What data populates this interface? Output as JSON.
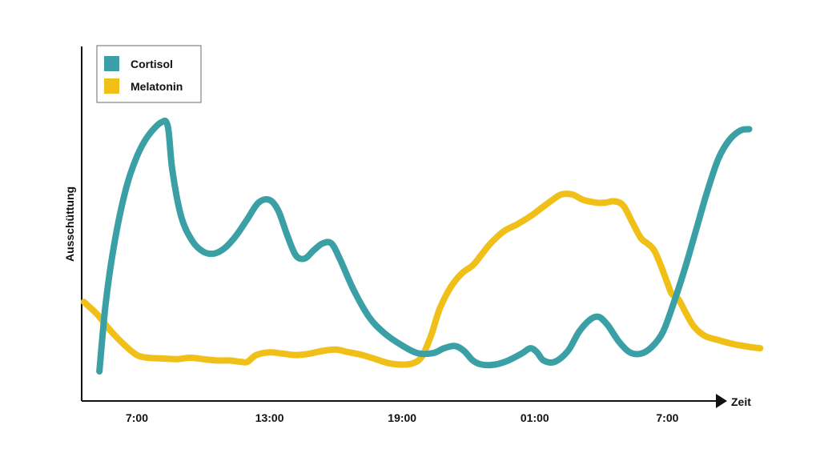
{
  "chart_data": {
    "type": "line",
    "title": "",
    "xlabel": "Zeit",
    "ylabel": "Ausschüttung",
    "xlim": [
      4.5,
      33
    ],
    "ylim": [
      0,
      100
    ],
    "x_ticks": [
      {
        "value": 7,
        "label": "7:00"
      },
      {
        "value": 13,
        "label": "13:00"
      },
      {
        "value": 19,
        "label": "19:00"
      },
      {
        "value": 25,
        "label": "01:00"
      },
      {
        "value": 31,
        "label": "7:00"
      }
    ],
    "legend_position": "top-left",
    "grid": false,
    "series": [
      {
        "name": "Cortisol",
        "color": "#3ba0a6",
        "points": [
          [
            5.3,
            5.0
          ],
          [
            5.6,
            31.0
          ],
          [
            6.0,
            53.0
          ],
          [
            6.5,
            72.0
          ],
          [
            7.0,
            84.0
          ],
          [
            7.5,
            91.5
          ],
          [
            8.1,
            96.5
          ],
          [
            8.4,
            95.0
          ],
          [
            8.6,
            79.0
          ],
          [
            9.0,
            62.0
          ],
          [
            9.5,
            53.0
          ],
          [
            10.0,
            49.0
          ],
          [
            10.5,
            48.3
          ],
          [
            11.0,
            50.5
          ],
          [
            11.5,
            55.0
          ],
          [
            12.0,
            61.0
          ],
          [
            12.5,
            67.0
          ],
          [
            13.0,
            68.0
          ],
          [
            13.4,
            64.0
          ],
          [
            13.8,
            55.0
          ],
          [
            14.2,
            47.5
          ],
          [
            14.6,
            46.5
          ],
          [
            15.0,
            49.5
          ],
          [
            15.4,
            52.0
          ],
          [
            15.8,
            52.0
          ],
          [
            16.2,
            46.0
          ],
          [
            16.8,
            35.0
          ],
          [
            17.5,
            25.0
          ],
          [
            18.2,
            19.0
          ],
          [
            19.0,
            14.5
          ],
          [
            19.7,
            11.7
          ],
          [
            20.4,
            11.7
          ],
          [
            20.9,
            13.5
          ],
          [
            21.4,
            14.3
          ],
          [
            21.8,
            12.5
          ],
          [
            22.2,
            9.0
          ],
          [
            22.6,
            7.5
          ],
          [
            23.2,
            7.5
          ],
          [
            23.8,
            9.0
          ],
          [
            24.4,
            11.5
          ],
          [
            24.8,
            13.5
          ],
          [
            25.1,
            12.0
          ],
          [
            25.4,
            9.0
          ],
          [
            25.9,
            8.5
          ],
          [
            26.5,
            12.5
          ],
          [
            27.0,
            19.5
          ],
          [
            27.5,
            24.0
          ],
          [
            27.9,
            25.0
          ],
          [
            28.3,
            22.0
          ],
          [
            28.8,
            16.0
          ],
          [
            29.3,
            12.0
          ],
          [
            29.8,
            11.5
          ],
          [
            30.3,
            14.0
          ],
          [
            30.8,
            19.5
          ],
          [
            31.3,
            30.5
          ],
          [
            31.8,
            43.0
          ],
          [
            32.3,
            57.0
          ],
          [
            32.8,
            71.0
          ],
          [
            33.3,
            83.0
          ],
          [
            33.8,
            90.0
          ],
          [
            34.3,
            93.5
          ],
          [
            34.7,
            94.0
          ]
        ]
      },
      {
        "name": "Melatonin",
        "color": "#f0c018",
        "points": [
          [
            4.6,
            30.5
          ],
          [
            5.2,
            26.0
          ],
          [
            5.8,
            20.0
          ],
          [
            6.4,
            15.0
          ],
          [
            7.0,
            11.0
          ],
          [
            7.5,
            10.0
          ],
          [
            8.0,
            9.8
          ],
          [
            8.8,
            9.5
          ],
          [
            9.4,
            10.0
          ],
          [
            10.0,
            9.5
          ],
          [
            10.6,
            9.0
          ],
          [
            11.2,
            9.0
          ],
          [
            11.7,
            8.5
          ],
          [
            12.0,
            8.5
          ],
          [
            12.4,
            11.0
          ],
          [
            13.0,
            12.0
          ],
          [
            13.6,
            11.5
          ],
          [
            14.2,
            11.0
          ],
          [
            14.8,
            11.5
          ],
          [
            15.4,
            12.5
          ],
          [
            16.0,
            13.0
          ],
          [
            16.6,
            12.0
          ],
          [
            17.2,
            11.0
          ],
          [
            17.8,
            9.5
          ],
          [
            18.4,
            8.0
          ],
          [
            19.0,
            7.5
          ],
          [
            19.5,
            8.0
          ],
          [
            19.9,
            10.5
          ],
          [
            20.3,
            18.0
          ],
          [
            20.7,
            28.0
          ],
          [
            21.2,
            36.0
          ],
          [
            21.7,
            41.0
          ],
          [
            22.2,
            44.0
          ],
          [
            22.6,
            48.0
          ],
          [
            23.0,
            52.0
          ],
          [
            23.6,
            56.5
          ],
          [
            24.2,
            59.0
          ],
          [
            24.8,
            62.0
          ],
          [
            25.3,
            65.0
          ],
          [
            25.8,
            68.0
          ],
          [
            26.2,
            70.0
          ],
          [
            26.7,
            70.0
          ],
          [
            27.2,
            68.0
          ],
          [
            27.8,
            67.0
          ],
          [
            28.2,
            67.0
          ],
          [
            28.6,
            67.5
          ],
          [
            29.0,
            66.0
          ],
          [
            29.4,
            60.0
          ],
          [
            29.8,
            54.0
          ],
          [
            30.1,
            52.0
          ],
          [
            30.4,
            49.5
          ],
          [
            30.7,
            44.0
          ],
          [
            31.0,
            37.5
          ],
          [
            31.2,
            33.5
          ],
          [
            31.5,
            31.5
          ],
          [
            31.8,
            27.0
          ],
          [
            32.2,
            21.5
          ],
          [
            32.7,
            18.0
          ],
          [
            33.3,
            16.5
          ],
          [
            34.0,
            15.0
          ],
          [
            34.7,
            14.0
          ],
          [
            35.2,
            13.5
          ]
        ]
      }
    ]
  }
}
